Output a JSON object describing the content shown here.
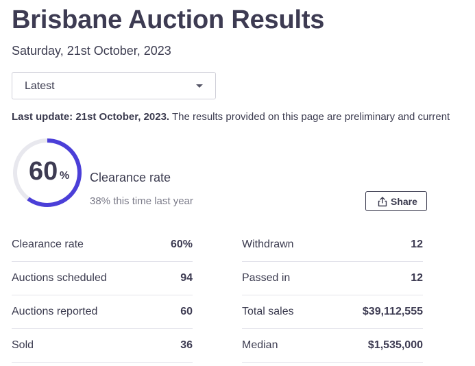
{
  "page": {
    "title": "Brisbane Auction Results",
    "date": "Saturday, 21st October, 2023"
  },
  "filter": {
    "selected": "Latest"
  },
  "notice": {
    "bold": "Last update: 21st October, 2023.",
    "text": " The results provided on this page are preliminary and current"
  },
  "summary": {
    "gauge_value": "60",
    "gauge_unit": "%",
    "gauge_fraction": 0.6,
    "label": "Clearance rate",
    "comparison": "38% this time last year",
    "colors": {
      "progress": "#4b3fd8",
      "track": "#e8e8ee"
    }
  },
  "share": {
    "label": "Share",
    "icon": "share-icon"
  },
  "stats_left": [
    {
      "label": "Clearance rate",
      "value": "60%"
    },
    {
      "label": "Auctions scheduled",
      "value": "94"
    },
    {
      "label": "Auctions reported",
      "value": "60"
    },
    {
      "label": "Sold",
      "value": "36"
    }
  ],
  "stats_right": [
    {
      "label": "Withdrawn",
      "value": "12"
    },
    {
      "label": "Passed in",
      "value": "12"
    },
    {
      "label": "Total sales",
      "value": "$39,112,555"
    },
    {
      "label": "Median",
      "value": "$1,535,000"
    }
  ]
}
